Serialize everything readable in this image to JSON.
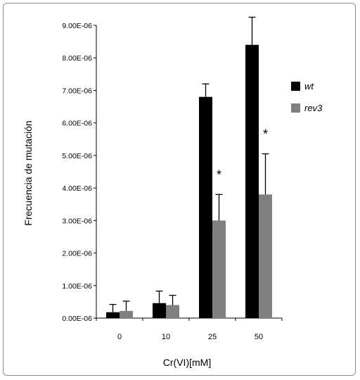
{
  "chart_data": {
    "type": "bar",
    "categories": [
      "0",
      "10",
      "25",
      "50"
    ],
    "series": [
      {
        "name": "wt",
        "color": "#000000",
        "values": [
          1.8e-07,
          4.6e-07,
          6.8e-06,
          8.4e-06
        ],
        "errors": [
          2.4e-07,
          3.7e-07,
          4e-07,
          8.5e-07
        ]
      },
      {
        "name": "rev3",
        "color": "#808080",
        "values": [
          2.2e-07,
          4e-07,
          3e-06,
          3.8e-06
        ],
        "errors": [
          3e-07,
          3e-07,
          8e-07,
          1.25e-06
        ]
      }
    ],
    "significance": [
      {
        "category": "25",
        "series": "rev3",
        "label": "*"
      },
      {
        "category": "50",
        "series": "rev3",
        "label": "*"
      }
    ],
    "yticks": [
      "0.00E-06",
      "1.00E-06",
      "2.00E-06",
      "3.00E-06",
      "4.00E-06",
      "5.00E-06",
      "6.00E-06",
      "7.00E-06",
      "8.00E-06",
      "9.00E-06"
    ],
    "ylim": [
      0,
      9e-06
    ],
    "xlabel": "Cr(VI)[mM]",
    "ylabel": "Frecuencia de mutación",
    "title": "",
    "legend_position": "right",
    "grid": false
  }
}
